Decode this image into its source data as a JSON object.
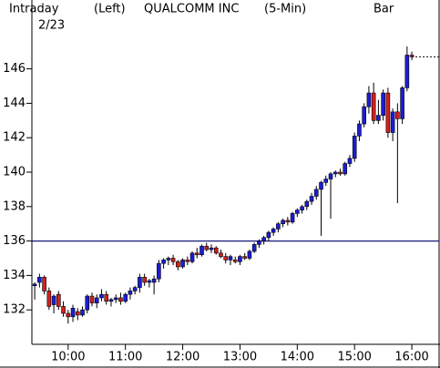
{
  "header": {
    "left_title": "Intraday",
    "date": "2/23",
    "axis_side": "(Left)",
    "symbol": "QUALCOMM INC",
    "interval": "(5-Min)",
    "style": "Bar"
  },
  "chart_data": {
    "type": "candlestick",
    "categories": [
      null,
      null,
      null,
      null,
      null,
      null,
      null,
      "10:00",
      null,
      null,
      null,
      null,
      null,
      null,
      null,
      null,
      null,
      null,
      null,
      "11:00",
      null,
      null,
      null,
      null,
      null,
      null,
      null,
      null,
      null,
      null,
      null,
      "12:00",
      null,
      null,
      null,
      null,
      null,
      null,
      null,
      null,
      null,
      null,
      null,
      "13:00",
      null,
      null,
      null,
      null,
      null,
      null,
      null,
      null,
      null,
      null,
      null,
      "14:00",
      null,
      null,
      null,
      null,
      null,
      null,
      null,
      null,
      null,
      null,
      null,
      "15:00",
      null,
      null,
      null,
      null,
      null,
      null,
      null,
      null,
      null,
      null,
      null,
      "16:00"
    ],
    "open": [
      133.4,
      133.6,
      133.9,
      133.1,
      132.3,
      132.9,
      132.2,
      131.8,
      131.6,
      131.9,
      131.7,
      132.0,
      132.8,
      132.4,
      132.7,
      132.9,
      132.5,
      132.6,
      132.7,
      132.5,
      132.9,
      133.1,
      133.3,
      133.9,
      133.6,
      133.6,
      133.8,
      134.7,
      134.9,
      135.0,
      134.8,
      134.5,
      134.9,
      134.8,
      135.3,
      135.2,
      135.7,
      135.5,
      135.6,
      135.3,
      135.1,
      134.9,
      134.9,
      134.8,
      135.1,
      135.0,
      135.4,
      135.8,
      136.0,
      136.2,
      136.5,
      136.7,
      137.0,
      137.2,
      137.1,
      137.6,
      137.8,
      138.0,
      138.3,
      138.6,
      139.0,
      139.4,
      139.6,
      139.9,
      140.0,
      139.9,
      140.5,
      140.8,
      142.1,
      142.8,
      143.8,
      144.6,
      143.0,
      143.3,
      144.6,
      142.3,
      143.5,
      143.1,
      144.9,
      146.8
    ],
    "high": [
      133.6,
      134.1,
      134.0,
      133.3,
      132.9,
      133.1,
      132.5,
      132.0,
      132.3,
      132.1,
      132.2,
      132.9,
      133.0,
      132.9,
      133.2,
      133.1,
      132.7,
      132.9,
      133.0,
      133.0,
      133.3,
      133.4,
      134.1,
      134.1,
      133.8,
      134.0,
      134.9,
      135.0,
      135.1,
      135.2,
      134.9,
      135.0,
      135.1,
      135.4,
      135.6,
      135.8,
      135.9,
      135.8,
      135.7,
      135.5,
      135.3,
      135.2,
      135.1,
      135.2,
      135.3,
      135.5,
      135.9,
      136.1,
      136.3,
      136.6,
      136.8,
      137.1,
      137.3,
      137.4,
      137.7,
      137.9,
      138.1,
      138.4,
      138.8,
      139.2,
      139.5,
      139.8,
      140.0,
      140.1,
      140.2,
      140.6,
      141.0,
      142.3,
      143.0,
      144.0,
      145.0,
      145.2,
      144.2,
      144.8,
      144.9,
      143.7,
      144.0,
      145.0,
      147.3,
      147.0
    ],
    "low": [
      132.6,
      133.3,
      132.9,
      132.0,
      131.8,
      132.0,
      131.6,
      131.2,
      131.3,
      131.4,
      131.6,
      131.8,
      132.2,
      132.1,
      132.5,
      132.3,
      132.2,
      132.4,
      132.3,
      132.4,
      132.6,
      132.9,
      133.0,
      133.4,
      133.3,
      132.9,
      133.6,
      134.4,
      134.6,
      134.6,
      134.3,
      134.4,
      134.6,
      134.7,
      135.0,
      135.1,
      135.4,
      135.3,
      135.2,
      135.0,
      134.7,
      134.6,
      134.7,
      134.6,
      134.9,
      134.9,
      135.3,
      135.6,
      135.8,
      136.0,
      136.3,
      136.5,
      136.8,
      136.9,
      137.0,
      137.4,
      137.6,
      137.8,
      138.1,
      138.4,
      136.3,
      139.2,
      137.3,
      139.7,
      139.8,
      139.8,
      140.3,
      140.6,
      141.8,
      142.6,
      143.4,
      142.8,
      142.8,
      143.0,
      142.0,
      141.8,
      138.2,
      142.8,
      144.7,
      146.5
    ],
    "close": [
      133.5,
      133.9,
      133.1,
      132.2,
      132.8,
      132.2,
      131.8,
      131.6,
      132.1,
      131.7,
      132.0,
      132.8,
      132.4,
      132.7,
      132.9,
      132.5,
      132.6,
      132.7,
      132.5,
      132.9,
      133.1,
      133.3,
      133.9,
      133.6,
      133.7,
      133.8,
      134.7,
      134.9,
      135.0,
      134.8,
      134.5,
      134.9,
      134.8,
      135.3,
      135.2,
      135.7,
      135.5,
      135.6,
      135.3,
      135.1,
      134.9,
      135.1,
      134.8,
      135.1,
      135.0,
      135.4,
      135.8,
      136.0,
      136.2,
      136.5,
      136.7,
      137.0,
      137.2,
      137.1,
      137.6,
      137.8,
      138.0,
      138.3,
      138.6,
      139.0,
      139.4,
      139.6,
      139.9,
      140.0,
      139.9,
      140.5,
      140.8,
      142.1,
      142.8,
      143.8,
      144.6,
      143.0,
      143.3,
      144.6,
      142.3,
      143.5,
      143.1,
      144.9,
      146.8,
      146.7
    ],
    "up_color": "#1c1cd8",
    "down_color": "#d42020",
    "reference_line": 136,
    "reference_color": "#1a1a7a",
    "ylim": [
      130,
      150
    ],
    "yticks": [
      132,
      134,
      136,
      138,
      140,
      142,
      144,
      146
    ]
  }
}
